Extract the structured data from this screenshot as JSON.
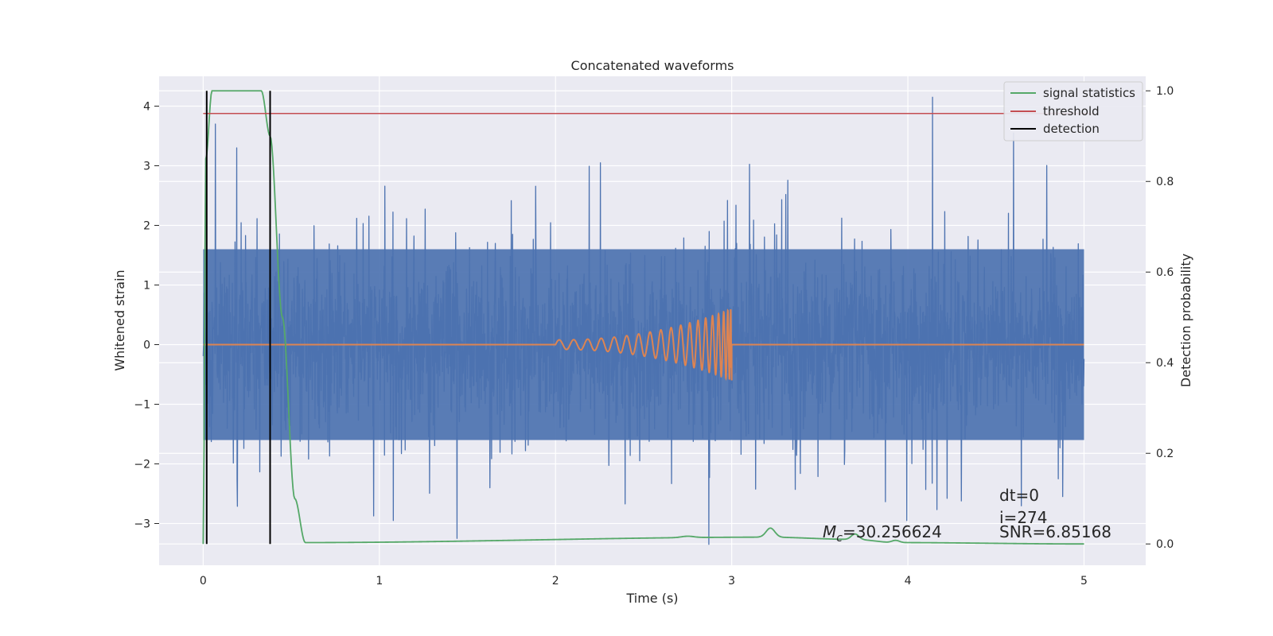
{
  "chart_data": {
    "type": "line",
    "title": "Concatenated waveforms",
    "xlabel": "Time (s)",
    "ylabel": "Whitened strain",
    "ylabel_right": "Detection probability",
    "xlim": [
      -0.25,
      5.35
    ],
    "ylim": [
      -3.7,
      4.5
    ],
    "ylim_right": [
      -0.047,
      1.032
    ],
    "x_ticks": [
      0,
      1,
      2,
      3,
      4,
      5
    ],
    "y_ticks": [
      -3,
      -2,
      -1,
      0,
      1,
      2,
      3,
      4
    ],
    "y_ticks_right": [
      0.0,
      0.2,
      0.4,
      0.6,
      0.8,
      1.0
    ],
    "x_tick_labels": [
      "0",
      "1",
      "2",
      "3",
      "4",
      "5"
    ],
    "y_tick_labels": [
      "−3",
      "−2",
      "−1",
      "0",
      "1",
      "2",
      "3",
      "4"
    ],
    "y_tick_labels_right": [
      "0.0",
      "0.2",
      "0.4",
      "0.6",
      "0.8",
      "1.0"
    ],
    "grid": true,
    "legend_position": "top-right",
    "colors": {
      "strain": "#4c72b0",
      "injection": "#dd8452",
      "signal_statistics": "#55a868",
      "threshold": "#c44e52",
      "detection": "#000000",
      "plot_background": "#eaeaf2",
      "grid": "#ffffff"
    },
    "legend": [
      {
        "label": "signal statistics",
        "color": "#55a868"
      },
      {
        "label": "threshold",
        "color": "#c44e52"
      },
      {
        "label": "detection",
        "color": "#000000"
      }
    ],
    "strain_series": {
      "x_range": [
        0,
        5
      ],
      "typical_band": [
        -1.6,
        1.6
      ],
      "peaks": [
        {
          "x": 0.07,
          "y": 3.7
        },
        {
          "x": 0.19,
          "y": 3.3
        },
        {
          "x": 1.44,
          "y": -3.25
        },
        {
          "x": 2.87,
          "y": -3.35
        },
        {
          "x": 4.14,
          "y": 4.15
        },
        {
          "x": 4.6,
          "y": 3.55
        }
      ]
    },
    "injection_series": {
      "type": "chirp",
      "start": 2.0,
      "end": 3.0,
      "amplitude_end": 0.6
    },
    "signal_statistics": [
      {
        "x": 0.0,
        "p": 0.0
      },
      {
        "x": 0.015,
        "p": 0.85
      },
      {
        "x": 0.05,
        "p": 1.0
      },
      {
        "x": 0.33,
        "p": 1.0
      },
      {
        "x": 0.38,
        "p": 0.9
      },
      {
        "x": 0.45,
        "p": 0.5
      },
      {
        "x": 0.52,
        "p": 0.1
      },
      {
        "x": 0.58,
        "p": 0.003
      },
      {
        "x": 3.2,
        "p": 0.015
      },
      {
        "x": 3.7,
        "p": 0.01
      },
      {
        "x": 3.93,
        "p": 0.003
      },
      {
        "x": 5.0,
        "p": 0.0
      }
    ],
    "threshold": 0.95,
    "detections": [
      0.02,
      0.38
    ],
    "annotations": {
      "mc": "=30.256624",
      "dt": "dt=0",
      "i": "i=274",
      "snr": "SNR=6.85168"
    }
  }
}
